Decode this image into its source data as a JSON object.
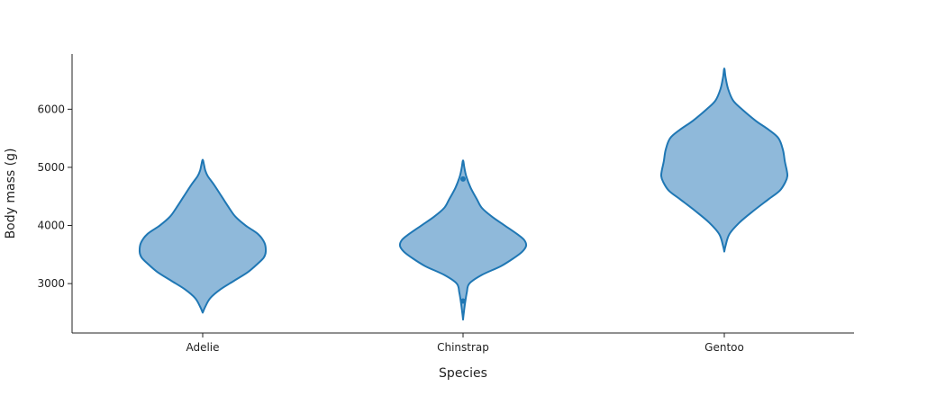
{
  "chart_data": {
    "type": "violin",
    "title": "",
    "xlabel": "Species",
    "ylabel": "Body mass (g)",
    "categories": [
      "Adelie",
      "Chinstrap",
      "Gentoo"
    ],
    "ylim": [
      2150,
      6950
    ],
    "yticks": [
      3000,
      4000,
      5000,
      6000
    ],
    "grid": false,
    "colors": {
      "fill": "#8fb9da",
      "stroke": "#1f77b4"
    },
    "violins": [
      {
        "category": "Adelie",
        "profile": [
          [
            2500,
            0.0
          ],
          [
            2600,
            0.04
          ],
          [
            2750,
            0.12
          ],
          [
            2900,
            0.28
          ],
          [
            3050,
            0.5
          ],
          [
            3200,
            0.72
          ],
          [
            3350,
            0.88
          ],
          [
            3450,
            0.97
          ],
          [
            3550,
            1.0
          ],
          [
            3700,
            0.98
          ],
          [
            3850,
            0.88
          ],
          [
            4000,
            0.68
          ],
          [
            4150,
            0.52
          ],
          [
            4300,
            0.42
          ],
          [
            4500,
            0.3
          ],
          [
            4700,
            0.18
          ],
          [
            4850,
            0.08
          ],
          [
            4950,
            0.04
          ],
          [
            5050,
            0.02
          ],
          [
            5130,
            0.0
          ]
        ],
        "outliers": []
      },
      {
        "category": "Chinstrap",
        "profile": [
          [
            2380,
            0.0
          ],
          [
            2480,
            0.01
          ],
          [
            2650,
            0.03
          ],
          [
            2850,
            0.06
          ],
          [
            3000,
            0.1
          ],
          [
            3150,
            0.3
          ],
          [
            3300,
            0.6
          ],
          [
            3450,
            0.82
          ],
          [
            3550,
            0.94
          ],
          [
            3650,
            1.0
          ],
          [
            3750,
            0.97
          ],
          [
            3850,
            0.86
          ],
          [
            4000,
            0.66
          ],
          [
            4150,
            0.46
          ],
          [
            4300,
            0.3
          ],
          [
            4450,
            0.22
          ],
          [
            4650,
            0.12
          ],
          [
            4850,
            0.05
          ],
          [
            5000,
            0.02
          ],
          [
            5120,
            0.0
          ]
        ],
        "outliers": [
          2700,
          4800
        ]
      },
      {
        "category": "Gentoo",
        "profile": [
          [
            3550,
            0.0
          ],
          [
            3650,
            0.02
          ],
          [
            3850,
            0.08
          ],
          [
            4050,
            0.24
          ],
          [
            4250,
            0.46
          ],
          [
            4450,
            0.7
          ],
          [
            4600,
            0.88
          ],
          [
            4750,
            0.97
          ],
          [
            4850,
            1.0
          ],
          [
            4950,
            0.99
          ],
          [
            5100,
            0.96
          ],
          [
            5300,
            0.93
          ],
          [
            5500,
            0.86
          ],
          [
            5650,
            0.7
          ],
          [
            5800,
            0.5
          ],
          [
            6000,
            0.28
          ],
          [
            6150,
            0.14
          ],
          [
            6350,
            0.06
          ],
          [
            6550,
            0.02
          ],
          [
            6700,
            0.0
          ]
        ],
        "outliers": []
      }
    ]
  }
}
